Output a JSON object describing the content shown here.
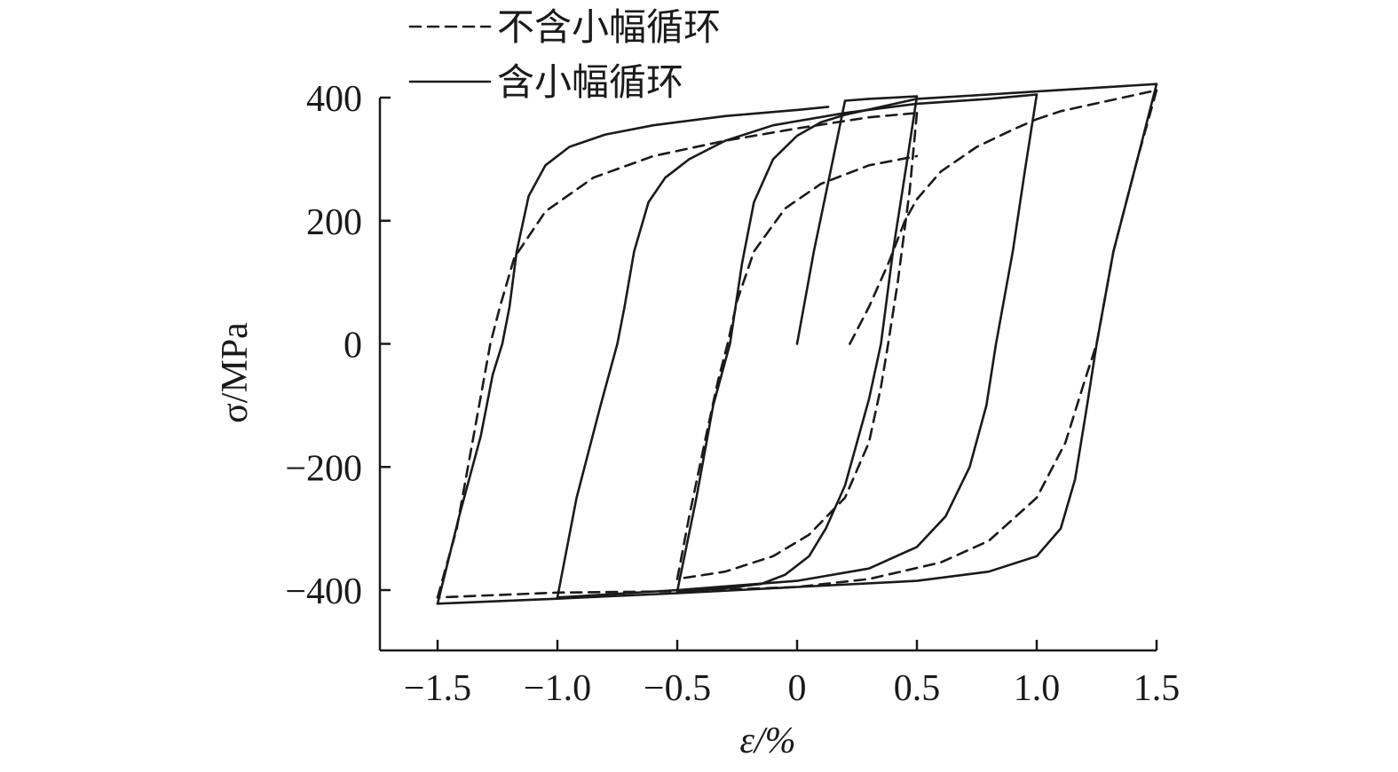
{
  "chart_data": {
    "type": "line",
    "xlabel": "ε/%",
    "ylabel": "σ/MPa",
    "xlim": [
      -1.75,
      1.5
    ],
    "ylim": [
      -500,
      400
    ],
    "xticks": [
      {
        "value": -1.5,
        "label": "−1.5"
      },
      {
        "value": -1.0,
        "label": "−1.0"
      },
      {
        "value": -0.5,
        "label": "−0.5"
      },
      {
        "value": 0,
        "label": "0"
      },
      {
        "value": 0.5,
        "label": "0.5"
      },
      {
        "value": 1.0,
        "label": "1.0"
      },
      {
        "value": 1.5,
        "label": "1.5"
      }
    ],
    "yticks": [
      {
        "value": 400,
        "label": "400"
      },
      {
        "value": 200,
        "label": "200"
      },
      {
        "value": 0,
        "label": "0"
      },
      {
        "value": -200,
        "label": "−200"
      },
      {
        "value": -400,
        "label": "−400"
      }
    ],
    "legend": {
      "position": "top-left",
      "entries": [
        {
          "label": "不含小幅循环",
          "style": "dashed"
        },
        {
          "label": "含小幅循环",
          "style": "solid"
        }
      ]
    },
    "series": [
      {
        "label": "不含小幅循环",
        "style": "dashed",
        "segments": [
          [
            [
              0.22,
              0
            ],
            [
              0.3,
              60
            ],
            [
              0.38,
              130
            ],
            [
              0.45,
              200
            ],
            [
              0.5,
              235
            ]
          ],
          [
            [
              0.5,
              235
            ],
            [
              0.6,
              280
            ],
            [
              0.75,
              320
            ],
            [
              0.9,
              348
            ],
            [
              1.0,
              365
            ]
          ],
          [
            [
              1.0,
              365
            ],
            [
              1.1,
              378
            ],
            [
              1.3,
              395
            ],
            [
              1.5,
              412
            ]
          ],
          [
            [
              1.5,
              412
            ],
            [
              1.42,
              300
            ],
            [
              1.32,
              150
            ],
            [
              1.25,
              0
            ],
            [
              1.2,
              -60
            ],
            [
              1.12,
              -160
            ],
            [
              1.0,
              -250
            ],
            [
              0.8,
              -320
            ],
            [
              0.6,
              -355
            ],
            [
              0.3,
              -382
            ],
            [
              0.0,
              -395
            ],
            [
              -0.5,
              -402
            ],
            [
              -1.0,
              -404
            ],
            [
              -1.5,
              -412
            ]
          ],
          [
            [
              -1.5,
              -412
            ],
            [
              -1.42,
              -300
            ],
            [
              -1.35,
              -150
            ],
            [
              -1.28,
              0
            ],
            [
              -1.24,
              60
            ],
            [
              -1.18,
              140
            ],
            [
              -1.05,
              215
            ],
            [
              -0.85,
              270
            ],
            [
              -0.6,
              305
            ],
            [
              -0.3,
              330
            ],
            [
              0.0,
              350
            ],
            [
              0.3,
              368
            ],
            [
              0.5,
              375
            ]
          ],
          [
            [
              0.5,
              375
            ],
            [
              0.47,
              250
            ],
            [
              0.42,
              100
            ],
            [
              0.38,
              0
            ],
            [
              0.35,
              -70
            ],
            [
              0.3,
              -160
            ],
            [
              0.2,
              -250
            ],
            [
              0.05,
              -310
            ],
            [
              -0.1,
              -345
            ],
            [
              -0.3,
              -370
            ],
            [
              -0.5,
              -382
            ]
          ],
          [
            [
              -0.5,
              -382
            ],
            [
              -0.45,
              -280
            ],
            [
              -0.38,
              -150
            ],
            [
              -0.33,
              -60
            ],
            [
              -0.29,
              0
            ],
            [
              -0.25,
              70
            ],
            [
              -0.18,
              150
            ],
            [
              -0.05,
              220
            ],
            [
              0.1,
              260
            ],
            [
              0.3,
              290
            ],
            [
              0.5,
              305
            ]
          ]
        ]
      },
      {
        "label": "含小幅循环",
        "style": "solid",
        "segments": [
          [
            [
              0,
              0
            ],
            [
              0.07,
              150
            ],
            [
              0.15,
              300
            ],
            [
              0.2,
              395
            ],
            [
              0.3,
              398
            ],
            [
              0.5,
              402
            ]
          ],
          [
            [
              0.5,
              402
            ],
            [
              0.46,
              300
            ],
            [
              0.4,
              150
            ],
            [
              0.35,
              0
            ],
            [
              0.3,
              -90
            ],
            [
              0.2,
              -230
            ],
            [
              0.12,
              -300
            ],
            [
              0.05,
              -345
            ],
            [
              -0.05,
              -375
            ],
            [
              -0.15,
              -390
            ],
            [
              -0.3,
              -397
            ],
            [
              -0.5,
              -402
            ]
          ],
          [
            [
              -0.5,
              -402
            ],
            [
              -0.42,
              -250
            ],
            [
              -0.35,
              -100
            ],
            [
              -0.28,
              0
            ],
            [
              -0.23,
              130
            ],
            [
              -0.18,
              230
            ],
            [
              -0.1,
              300
            ],
            [
              0.0,
              338
            ],
            [
              0.1,
              360
            ],
            [
              0.2,
              372
            ],
            [
              0.35,
              385
            ],
            [
              0.5,
              398
            ]
          ],
          [
            [
              0.5,
              398
            ],
            [
              0.8,
              405
            ],
            [
              1.0,
              410
            ],
            [
              1.5,
              422
            ]
          ],
          [
            [
              1.5,
              422
            ],
            [
              1.42,
              300
            ],
            [
              1.32,
              150
            ],
            [
              1.25,
              0
            ],
            [
              1.21,
              -100
            ],
            [
              1.16,
              -220
            ],
            [
              1.1,
              -300
            ],
            [
              1.0,
              -345
            ],
            [
              0.8,
              -370
            ],
            [
              0.5,
              -385
            ],
            [
              0.0,
              -395
            ],
            [
              -0.5,
              -405
            ],
            [
              -1.0,
              -414
            ],
            [
              -1.5,
              -422
            ]
          ],
          [
            [
              -1.5,
              -422
            ],
            [
              -1.41,
              -280
            ],
            [
              -1.32,
              -150
            ],
            [
              -1.27,
              -50
            ],
            [
              -1.23,
              0
            ],
            [
              -1.2,
              60
            ],
            [
              -1.17,
              150
            ],
            [
              -1.12,
              240
            ],
            [
              -1.05,
              290
            ],
            [
              -0.95,
              320
            ],
            [
              -0.8,
              340
            ],
            [
              -0.6,
              355
            ],
            [
              -0.3,
              370
            ],
            [
              0.0,
              380
            ],
            [
              0.13,
              385
            ]
          ],
          [
            [
              -1.0,
              -412
            ],
            [
              -0.92,
              -250
            ],
            [
              -0.82,
              -100
            ],
            [
              -0.75,
              0
            ],
            [
              -0.72,
              60
            ],
            [
              -0.68,
              150
            ],
            [
              -0.62,
              230
            ],
            [
              -0.55,
              270
            ],
            [
              -0.45,
              300
            ],
            [
              -0.3,
              330
            ],
            [
              -0.1,
              355
            ],
            [
              0.2,
              375
            ],
            [
              0.5,
              390
            ],
            [
              0.8,
              398
            ],
            [
              1.0,
              405
            ]
          ],
          [
            [
              1.0,
              405
            ],
            [
              0.95,
              280
            ],
            [
              0.9,
              150
            ],
            [
              0.83,
              0
            ],
            [
              0.79,
              -100
            ],
            [
              0.72,
              -200
            ],
            [
              0.62,
              -280
            ],
            [
              0.5,
              -330
            ],
            [
              0.3,
              -365
            ],
            [
              0.0,
              -385
            ],
            [
              -0.5,
              -400
            ],
            [
              -1.0,
              -412
            ]
          ]
        ]
      }
    ]
  }
}
